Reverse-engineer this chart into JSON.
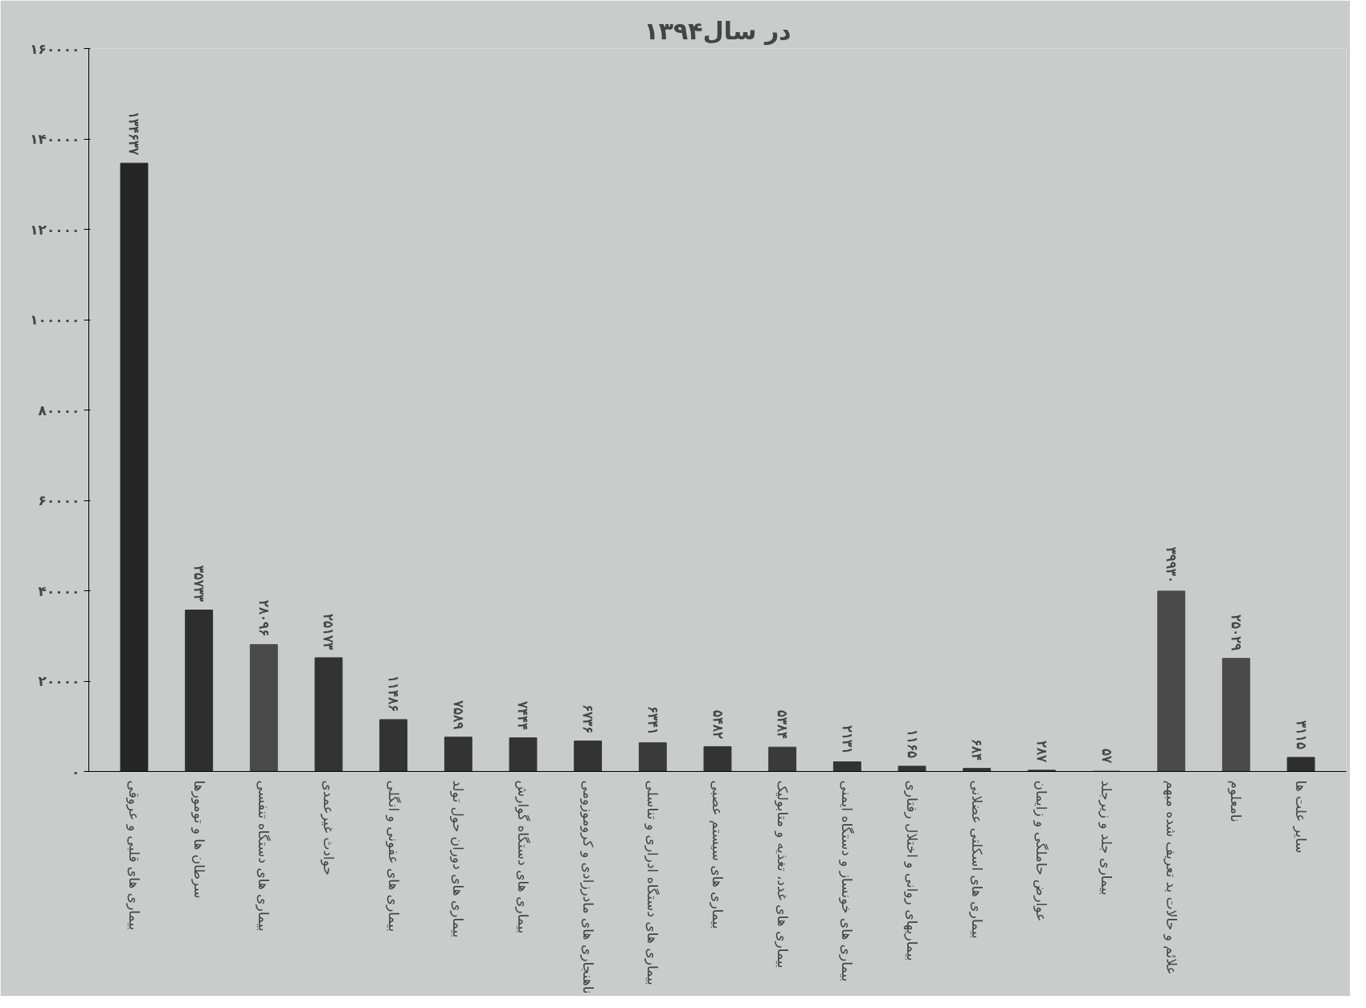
{
  "chart_data": {
    "type": "bar",
    "title": "در سال۱۳۹۴",
    "categories": [
      "بیماری های قلبی و عروقی",
      "سرطان ها و تومورها",
      "بیماری های دستگاه تنفسی",
      "حوادث غیرعمدی",
      "بیماری های عفونی و انگلی",
      "بیماری های دوران حول تولد",
      "بیماری های دستگاه گوارش",
      "ناهنجاری های مادرزادی و کروموزومی",
      "بیماری های دستگاه ادراری و تناسلی",
      "بیماری های سیستم عصبی",
      "بیماری های غدد، تغذیه و متابولیک",
      "بیماری های خونساز و دستگاه ایمنی",
      "بیماریهای روانی و اختلال رفتاری",
      "بیماری های اسکلتی عضلانی",
      "عوارض حاملگی و زایمان",
      "بیماری جلد و زیرجلد",
      "علائم و حالات بد تعریف شده مبهم",
      "نامعلوم",
      "سایر علت ها"
    ],
    "values": [
      134637,
      35733,
      28096,
      25173,
      11486,
      7589,
      7444,
      6736,
      6341,
      5482,
      5384,
      2131,
      1165,
      684,
      287,
      57,
      39930,
      25029,
      3115
    ],
    "value_labels": [
      "۱۳۴۶۳۷",
      "۳۵۷۳۳",
      "۲۸۰۹۶",
      "۲۵۱۷۳",
      "۱۱۴۸۶",
      "۷۵۸۹",
      "۷۴۴۴",
      "۶۷۳۶",
      "۶۳۴۱",
      "۵۴۸۲",
      "۵۳۸۴",
      "۲۱۳۱",
      "۱۱۶۵",
      "۶۸۴",
      "۲۸۷",
      "۵۷",
      "۳۹۹۳۰",
      "۲۵۰۲۹",
      "۳۱۱۵"
    ],
    "colors": [
      "#262626",
      "#2e2e2e",
      "#4a4a4a",
      "#333333",
      "#333333",
      "#333333",
      "#333333",
      "#333333",
      "#3a3a3a",
      "#333333",
      "#3a3a3a",
      "#333333",
      "#333333",
      "#333333",
      "#333333",
      "#333333",
      "#4a4a4a",
      "#4a4a4a",
      "#2e2e2e"
    ],
    "ylim": [
      0,
      160000
    ],
    "yticks": [
      {
        "value": 0,
        "label": "۰"
      },
      {
        "value": 20000,
        "label": "۲۰۰۰۰"
      },
      {
        "value": 40000,
        "label": "۴۰۰۰۰"
      },
      {
        "value": 60000,
        "label": "۶۰۰۰۰"
      },
      {
        "value": 80000,
        "label": "۸۰۰۰۰"
      },
      {
        "value": 100000,
        "label": "۱۰۰۰۰۰"
      },
      {
        "value": 120000,
        "label": "۱۲۰۰۰۰"
      },
      {
        "value": 140000,
        "label": "۱۴۰۰۰۰"
      },
      {
        "value": 160000,
        "label": "۱۶۰۰۰۰"
      }
    ]
  }
}
